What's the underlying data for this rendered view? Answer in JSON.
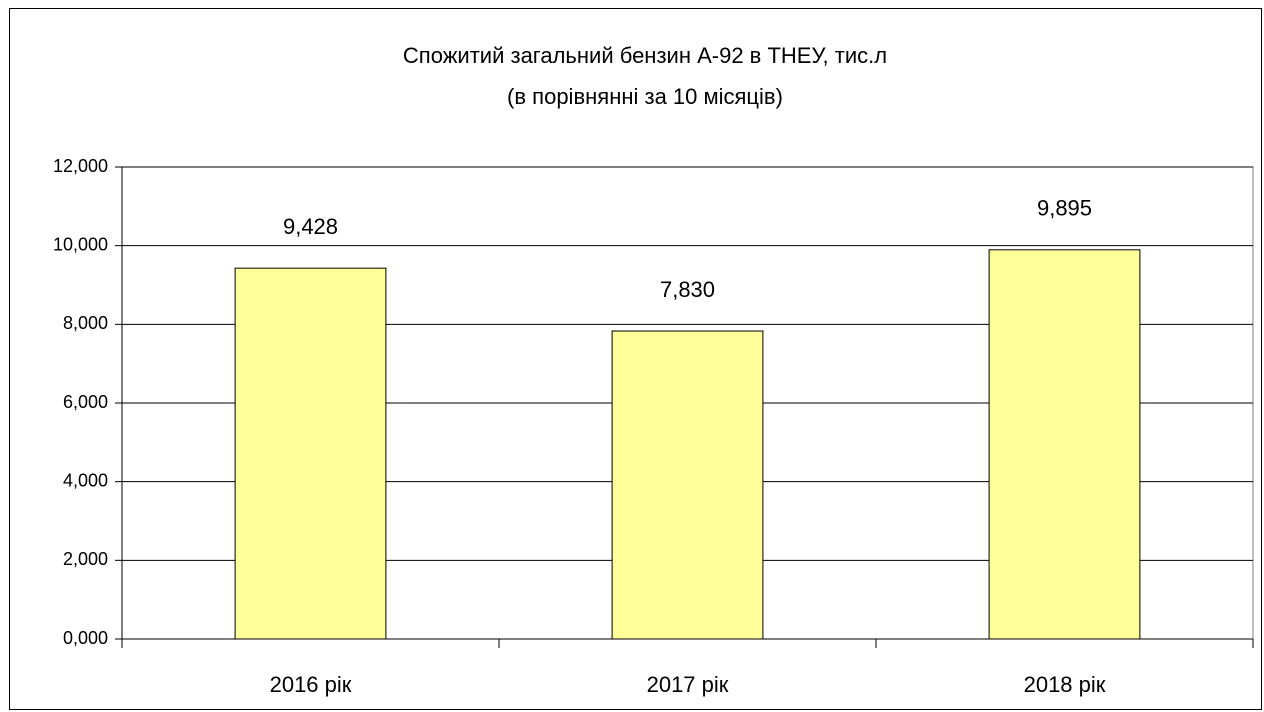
{
  "chart_data": {
    "type": "bar",
    "title": "Спожитий загальний бензин А-92 в ТНЕУ, тис.л",
    "subtitle": "(в порівнянні за 10 місяців)",
    "categories": [
      "2016 рік",
      "2017 рік",
      "2018 рік"
    ],
    "values": [
      9.428,
      7.83,
      9.895
    ],
    "value_labels": [
      "9,428",
      "7,830",
      "9,895"
    ],
    "color": "#ffff99",
    "ylim": [
      0,
      12
    ],
    "yticks": [
      {
        "value": 0,
        "label": "0,000"
      },
      {
        "value": 2,
        "label": "2,000"
      },
      {
        "value": 4,
        "label": "4,000"
      },
      {
        "value": 6,
        "label": "6,000"
      },
      {
        "value": 8,
        "label": "8,000"
      },
      {
        "value": 10,
        "label": "10,000"
      },
      {
        "value": 12,
        "label": "12,000"
      }
    ],
    "grid": true
  }
}
